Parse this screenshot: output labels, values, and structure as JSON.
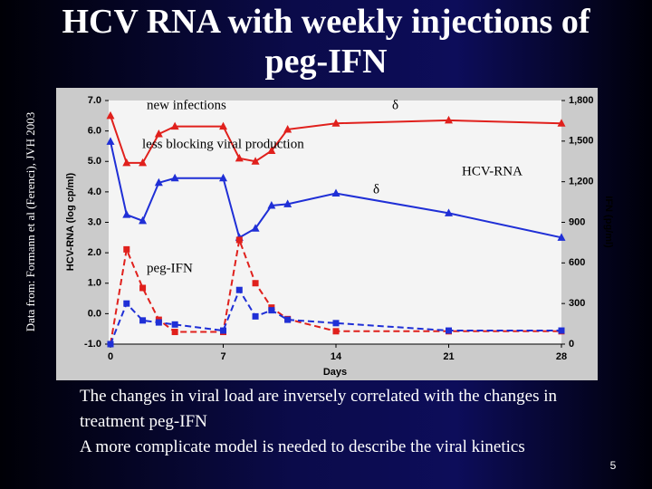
{
  "chart_data": {
    "type": "line",
    "title": "HCV RNA with weekly injections of peg-IFN",
    "x_label": "Days",
    "y_label": "HCV-RNA (log cp/ml)",
    "y2_label": "IFN (pg/ml)",
    "x": [
      0,
      1,
      2,
      3,
      4,
      7,
      8,
      9,
      10,
      11,
      14,
      21,
      28
    ],
    "series": [
      {
        "color": "#1f2fd6",
        "marker": "triangle",
        "dashed": false,
        "axis": "y",
        "values": [
          5.65,
          3.25,
          3.05,
          4.3,
          4.45,
          4.45,
          2.5,
          2.8,
          3.55,
          3.6,
          3.95,
          3.3,
          2.5
        ]
      },
      {
        "color": "#e0201c",
        "marker": "triangle",
        "dashed": false,
        "axis": "y",
        "values": [
          6.5,
          4.95,
          4.95,
          5.9,
          6.15,
          6.15,
          5.1,
          5.0,
          5.35,
          6.05,
          6.25,
          6.35,
          6.25
        ]
      },
      {
        "color": "#e0201c",
        "marker": "square",
        "dashed": true,
        "axis": "y2",
        "values": [
          0,
          700,
          415,
          180,
          90,
          90,
          770,
          450,
          270,
          185,
          95,
          95,
          95
        ]
      },
      {
        "color": "#1f2fd6",
        "marker": "square",
        "dashed": true,
        "axis": "y2",
        "values": [
          0,
          300,
          175,
          160,
          145,
          100,
          400,
          205,
          250,
          180,
          155,
          100,
          100
        ]
      }
    ],
    "xlim": [
      0,
      28
    ],
    "xticks": [
      0,
      7,
      14,
      21,
      28
    ],
    "ylim": [
      -1,
      7
    ],
    "yticks": [
      {
        "value": -1,
        "label": "-1.0"
      },
      {
        "value": 0,
        "label": "0.0"
      },
      {
        "value": 1,
        "label": "1.0"
      },
      {
        "value": 2,
        "label": "2.0"
      },
      {
        "value": 3,
        "label": "3.0"
      },
      {
        "value": 4,
        "label": "4.0"
      },
      {
        "value": 5,
        "label": "5.0"
      },
      {
        "value": 6,
        "label": "6.0"
      },
      {
        "value": 7,
        "label": "7.0"
      }
    ],
    "y2lim": [
      0,
      1800
    ],
    "y2ticks": [
      0,
      300,
      600,
      900,
      {
        "value": 1200,
        "label": "1,200"
      },
      {
        "value": 1500,
        "label": "1,500"
      },
      {
        "value": 1800,
        "label": "1,800"
      }
    ],
    "annotations": [
      "new infections",
      "δ",
      "less blocking viral production",
      "HCV-RNA",
      "δ",
      "peg-IFN"
    ]
  },
  "source": "Data from: Formann et al (Ferenci), JVH 2003",
  "body": [
    "The changes in viral load are inversely correlated with the changes in treatment peg-IFN",
    "A more complicate model is needed to describe the viral kinetics"
  ],
  "page_number": 5
}
